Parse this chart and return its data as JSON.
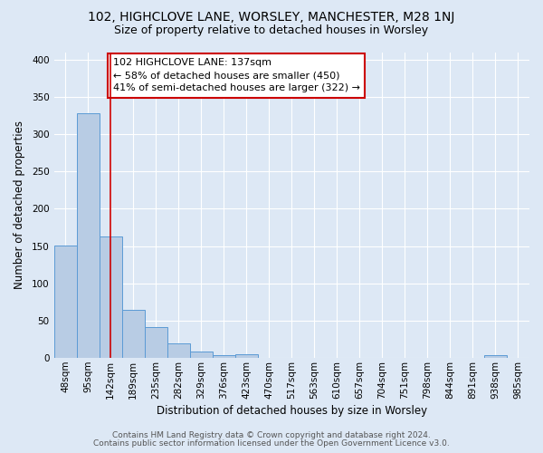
{
  "title": "102, HIGHCLOVE LANE, WORSLEY, MANCHESTER, M28 1NJ",
  "subtitle": "Size of property relative to detached houses in Worsley",
  "xlabel": "Distribution of detached houses by size in Worsley",
  "ylabel": "Number of detached properties",
  "footer_lines": [
    "Contains HM Land Registry data © Crown copyright and database right 2024.",
    "Contains public sector information licensed under the Open Government Licence v3.0."
  ],
  "bin_labels": [
    "48sqm",
    "95sqm",
    "142sqm",
    "189sqm",
    "235sqm",
    "282sqm",
    "329sqm",
    "376sqm",
    "423sqm",
    "470sqm",
    "517sqm",
    "563sqm",
    "610sqm",
    "657sqm",
    "704sqm",
    "751sqm",
    "798sqm",
    "844sqm",
    "891sqm",
    "938sqm",
    "985sqm"
  ],
  "bar_values": [
    151,
    328,
    163,
    64,
    41,
    20,
    9,
    4,
    5,
    0,
    0,
    0,
    0,
    0,
    0,
    0,
    0,
    0,
    0,
    4,
    0
  ],
  "bar_color": "#b8cce4",
  "bar_edge_color": "#5b9bd5",
  "vline_pos": 2.0,
  "annotation_text": "102 HIGHCLOVE LANE: 137sqm\n← 58% of detached houses are smaller (450)\n41% of semi-detached houses are larger (322) →",
  "annotation_box_edge": "#cc0000",
  "vline_color": "#cc0000",
  "ylim": [
    0,
    410
  ],
  "yticks": [
    0,
    50,
    100,
    150,
    200,
    250,
    300,
    350,
    400
  ],
  "background_color": "#dde8f5",
  "plot_bg_color": "#dde8f5",
  "grid_color": "#ffffff",
  "title_fontsize": 10,
  "subtitle_fontsize": 9,
  "axis_label_fontsize": 8.5,
  "tick_fontsize": 7.5,
  "annotation_fontsize": 8,
  "footer_fontsize": 6.5
}
